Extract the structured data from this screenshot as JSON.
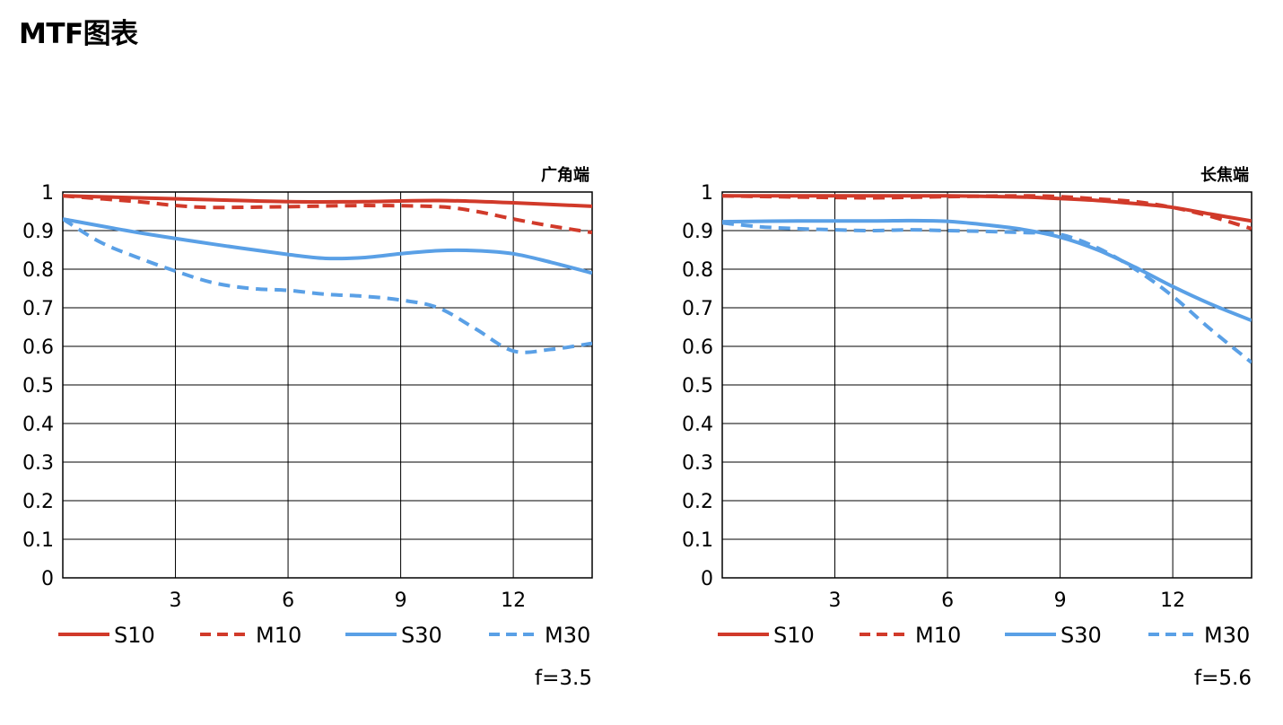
{
  "page": {
    "title": "MTF图表"
  },
  "colors": {
    "red": "#d13a2a",
    "blue": "#5aa0e6",
    "grid": "#000000"
  },
  "chart_data": [
    {
      "type": "line",
      "corner_label": "广角端",
      "aperture": "f=3.5",
      "xlim": [
        0,
        14.1
      ],
      "ylim": [
        0,
        1
      ],
      "xticks": [
        3,
        6,
        9,
        12
      ],
      "yticks": [
        0,
        0.1,
        0.2,
        0.3,
        0.4,
        0.5,
        0.6,
        0.7,
        0.8,
        0.9,
        1
      ],
      "ytick_labels": [
        "0",
        "0.1",
        "0.2",
        "0.3",
        "0.4",
        "0.5",
        "0.6",
        "0.7",
        "0.8",
        "0.9",
        "1"
      ],
      "grid": true,
      "series": [
        {
          "name": "S10",
          "color": "red",
          "style": "solid",
          "x": [
            0,
            2,
            4,
            6,
            8,
            10,
            12,
            14.1
          ],
          "y": [
            0.99,
            0.985,
            0.98,
            0.975,
            0.975,
            0.978,
            0.972,
            0.963
          ]
        },
        {
          "name": "M10",
          "color": "red",
          "style": "dashed",
          "x": [
            0,
            2,
            3,
            4,
            6,
            8,
            10,
            11,
            12,
            13,
            14.1
          ],
          "y": [
            0.99,
            0.975,
            0.965,
            0.96,
            0.962,
            0.965,
            0.962,
            0.95,
            0.93,
            0.912,
            0.895
          ]
        },
        {
          "name": "S30",
          "color": "blue",
          "style": "solid",
          "x": [
            0,
            2,
            4,
            6,
            7,
            8,
            9,
            10,
            11,
            12,
            13,
            14.1
          ],
          "y": [
            0.93,
            0.895,
            0.865,
            0.838,
            0.828,
            0.83,
            0.84,
            0.848,
            0.848,
            0.84,
            0.818,
            0.79
          ]
        },
        {
          "name": "M30",
          "color": "blue",
          "style": "dashed",
          "x": [
            0,
            1,
            2,
            3,
            4,
            5,
            6,
            7,
            8,
            9,
            10,
            11,
            12,
            13,
            14.1
          ],
          "y": [
            0.93,
            0.87,
            0.83,
            0.795,
            0.765,
            0.75,
            0.745,
            0.735,
            0.73,
            0.72,
            0.7,
            0.645,
            0.588,
            0.592,
            0.608
          ]
        }
      ]
    },
    {
      "type": "line",
      "corner_label": "长焦端",
      "aperture": "f=5.6",
      "xlim": [
        0,
        14.1
      ],
      "ylim": [
        0,
        1
      ],
      "xticks": [
        3,
        6,
        9,
        12
      ],
      "yticks": [
        0,
        0.1,
        0.2,
        0.3,
        0.4,
        0.5,
        0.6,
        0.7,
        0.8,
        0.9,
        1
      ],
      "ytick_labels": [
        "0",
        "0.1",
        "0.2",
        "0.3",
        "0.4",
        "0.5",
        "0.6",
        "0.7",
        "0.8",
        "0.9",
        "1"
      ],
      "grid": true,
      "series": [
        {
          "name": "S10",
          "color": "red",
          "style": "solid",
          "x": [
            0,
            2,
            4,
            6,
            8,
            9,
            10,
            11,
            12,
            13,
            14.1
          ],
          "y": [
            0.99,
            0.99,
            0.99,
            0.99,
            0.987,
            0.983,
            0.978,
            0.97,
            0.96,
            0.943,
            0.925
          ]
        },
        {
          "name": "M10",
          "color": "red",
          "style": "dashed",
          "x": [
            0,
            2,
            4,
            6,
            8,
            9,
            10,
            11,
            12,
            13,
            14.1
          ],
          "y": [
            0.99,
            0.987,
            0.985,
            0.988,
            0.99,
            0.988,
            0.982,
            0.975,
            0.96,
            0.937,
            0.905
          ]
        },
        {
          "name": "S30",
          "color": "blue",
          "style": "solid",
          "x": [
            0,
            2,
            4,
            5,
            6,
            7,
            8,
            9,
            10,
            11,
            12,
            13,
            14.1
          ],
          "y": [
            0.923,
            0.925,
            0.925,
            0.926,
            0.924,
            0.915,
            0.903,
            0.883,
            0.85,
            0.805,
            0.755,
            0.71,
            0.667
          ]
        },
        {
          "name": "M30",
          "color": "blue",
          "style": "dashed",
          "x": [
            0,
            1,
            2,
            3,
            4,
            5,
            6,
            7,
            8,
            9,
            10,
            11,
            12,
            13,
            14.1
          ],
          "y": [
            0.92,
            0.91,
            0.905,
            0.902,
            0.9,
            0.902,
            0.9,
            0.898,
            0.895,
            0.89,
            0.855,
            0.8,
            0.73,
            0.645,
            0.558
          ]
        }
      ]
    }
  ]
}
